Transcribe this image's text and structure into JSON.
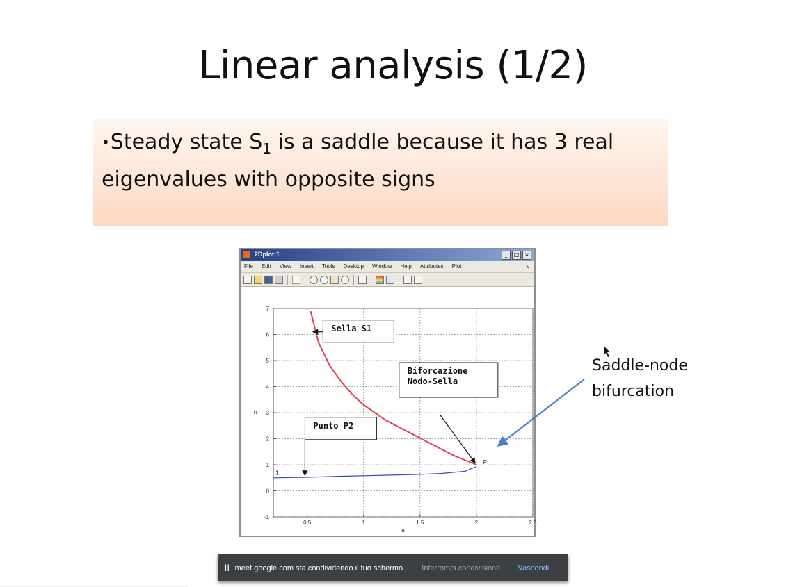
{
  "slide": {
    "title": "Linear analysis (1/2)",
    "bullet": {
      "marker": "•",
      "text_before": "Steady state S",
      "subscript": "1",
      "text_after": " is a saddle because it has 3 real eigenvalues with opposite signs"
    },
    "side_annotation": {
      "line1": "Saddle-node",
      "line2": "bifurcation"
    }
  },
  "matlab_window": {
    "title": "2Dplot:1",
    "window_buttons": [
      "_",
      "□",
      "×"
    ],
    "menu": [
      "File",
      "Edit",
      "View",
      "Insert",
      "Tools",
      "Desktop",
      "Window",
      "Help",
      "Attributes",
      "Plot"
    ],
    "menu_arrow": "↘",
    "toolbar_icons": [
      "new-file-icon",
      "open-icon",
      "save-icon",
      "print-icon",
      "pointer-icon",
      "zoom-in-icon",
      "zoom-out-icon",
      "pan-icon",
      "rotate-icon",
      "data-cursor-icon",
      "colorbar-icon",
      "legend-icon",
      "hide-plot-tools-icon",
      "show-plot-tools-icon"
    ]
  },
  "chart_data": {
    "type": "line",
    "xlabel": "a",
    "ylabel": "n",
    "xlim": [
      0.2,
      2.5
    ],
    "ylim": [
      -1,
      7
    ],
    "x_ticks": [
      "0.5",
      "1",
      "1.5",
      "2",
      "2.5"
    ],
    "y_ticks": [
      "-1",
      "0",
      "1",
      "2",
      "3",
      "4",
      "5",
      "6",
      "7"
    ],
    "grid": true,
    "series": [
      {
        "color": "#d9434f",
        "x": [
          0.53,
          0.6,
          0.7,
          0.8,
          0.9,
          1.0,
          1.2,
          1.4,
          1.6,
          1.8,
          2.0
        ],
        "y": [
          6.9,
          5.7,
          4.8,
          4.2,
          3.7,
          3.3,
          2.7,
          2.25,
          1.8,
          1.35,
          1.0
        ]
      },
      {
        "color": "#3b46c7",
        "x": [
          0.2,
          0.5,
          0.8,
          1.0,
          1.2,
          1.5,
          1.7,
          1.9,
          2.0
        ],
        "y": [
          0.5,
          0.52,
          0.56,
          0.58,
          0.6,
          0.63,
          0.67,
          0.75,
          0.93
        ]
      }
    ],
    "annotations": [
      {
        "text_lines": [
          "Sella S1"
        ]
      },
      {
        "text_lines": [
          "Biforcazione",
          "Nodo-Sella"
        ]
      },
      {
        "text_lines": [
          "Punto P2"
        ]
      }
    ],
    "point_labels": [
      "1",
      "P"
    ]
  },
  "share_bar": {
    "pause": "||",
    "message": "meet.google.com sta condividendo il tuo schermo.",
    "stop_label": "Interrompi condivisione",
    "hide_label": "Nascondi"
  },
  "colors": {
    "bullet_box_top": "#fff6ef",
    "bullet_box_bottom": "#fcd9c3",
    "arrow_blue": "#4a7fc4",
    "share_bar_bg": "#3c4043",
    "hide_link": "#8ab4f8"
  }
}
